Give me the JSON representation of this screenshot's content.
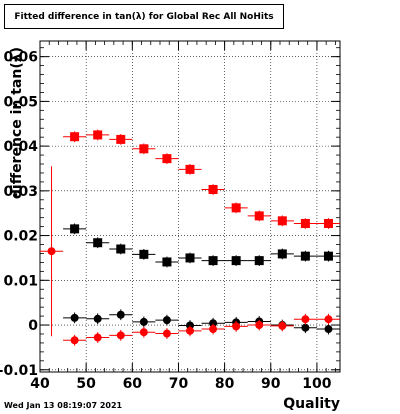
{
  "chart_data": {
    "type": "scatter",
    "title": "Fitted difference in tan(λ) for Global Rec All NoHits",
    "xlabel": "Quality",
    "ylabel": "difference in tan(λ)",
    "xlim": [
      40,
      105
    ],
    "ylim": [
      -0.0105,
      0.0635
    ],
    "x_ticks": [
      "40",
      "50",
      "60",
      "70",
      "80",
      "90",
      "100"
    ],
    "y_ticks": [
      "-0.01",
      "0",
      "0.01",
      "0.02",
      "0.03",
      "0.04",
      "0.05",
      "0.06"
    ],
    "grid": true,
    "legend": "none",
    "series": [
      {
        "color": "#ff0000",
        "marker": "square",
        "points": [
          {
            "x": 47.5,
            "y": 0.0421
          },
          {
            "x": 52.5,
            "y": 0.0425
          },
          {
            "x": 57.5,
            "y": 0.0415
          },
          {
            "x": 62.5,
            "y": 0.0394
          },
          {
            "x": 67.5,
            "y": 0.0372
          },
          {
            "x": 72.5,
            "y": 0.0348
          },
          {
            "x": 77.5,
            "y": 0.0303
          },
          {
            "x": 82.5,
            "y": 0.0262
          },
          {
            "x": 87.5,
            "y": 0.0244
          },
          {
            "x": 92.5,
            "y": 0.0233
          },
          {
            "x": 97.5,
            "y": 0.0227
          },
          {
            "x": 102.5,
            "y": 0.0227
          }
        ]
      },
      {
        "color": "#000000",
        "marker": "square",
        "points": [
          {
            "x": 47.5,
            "y": 0.0215
          },
          {
            "x": 52.5,
            "y": 0.0184
          },
          {
            "x": 57.5,
            "y": 0.017
          },
          {
            "x": 62.5,
            "y": 0.0158
          },
          {
            "x": 67.5,
            "y": 0.0141
          },
          {
            "x": 72.5,
            "y": 0.015
          },
          {
            "x": 77.5,
            "y": 0.0144
          },
          {
            "x": 82.5,
            "y": 0.0144
          },
          {
            "x": 87.5,
            "y": 0.0144
          },
          {
            "x": 92.5,
            "y": 0.0159
          },
          {
            "x": 97.5,
            "y": 0.0154
          },
          {
            "x": 102.5,
            "y": 0.0154
          }
        ]
      },
      {
        "color": "#000000",
        "marker": "circle",
        "points": [
          {
            "x": 47.5,
            "y": 0.0016
          },
          {
            "x": 52.5,
            "y": 0.0014
          },
          {
            "x": 57.5,
            "y": 0.0023
          },
          {
            "x": 62.5,
            "y": 0.0007
          },
          {
            "x": 67.5,
            "y": 0.0011
          },
          {
            "x": 72.5,
            "y": -0.0001
          },
          {
            "x": 77.5,
            "y": 0.0004
          },
          {
            "x": 82.5,
            "y": 0.0006
          },
          {
            "x": 87.5,
            "y": 0.0008
          },
          {
            "x": 92.5,
            "y": 0.0
          },
          {
            "x": 97.5,
            "y": -0.0006
          },
          {
            "x": 102.5,
            "y": -0.0009
          }
        ]
      },
      {
        "color": "#ff0000",
        "marker": "circle",
        "points": [
          {
            "x": 42.5,
            "y": 0.0165,
            "yerr": 0.019
          },
          {
            "x": 47.5,
            "y": -0.0034
          },
          {
            "x": 52.5,
            "y": -0.0028
          },
          {
            "x": 57.5,
            "y": -0.0023
          },
          {
            "x": 62.5,
            "y": -0.0016
          },
          {
            "x": 67.5,
            "y": -0.0019
          },
          {
            "x": 72.5,
            "y": -0.0013
          },
          {
            "x": 77.5,
            "y": -0.0009
          },
          {
            "x": 82.5,
            "y": -0.0003
          },
          {
            "x": 87.5,
            "y": 0.0
          },
          {
            "x": 92.5,
            "y": -0.0002
          },
          {
            "x": 97.5,
            "y": 0.0013
          },
          {
            "x": 102.5,
            "y": 0.0013
          }
        ]
      }
    ]
  },
  "footer_text": "Wed Jan 13 08:19:07 2021"
}
